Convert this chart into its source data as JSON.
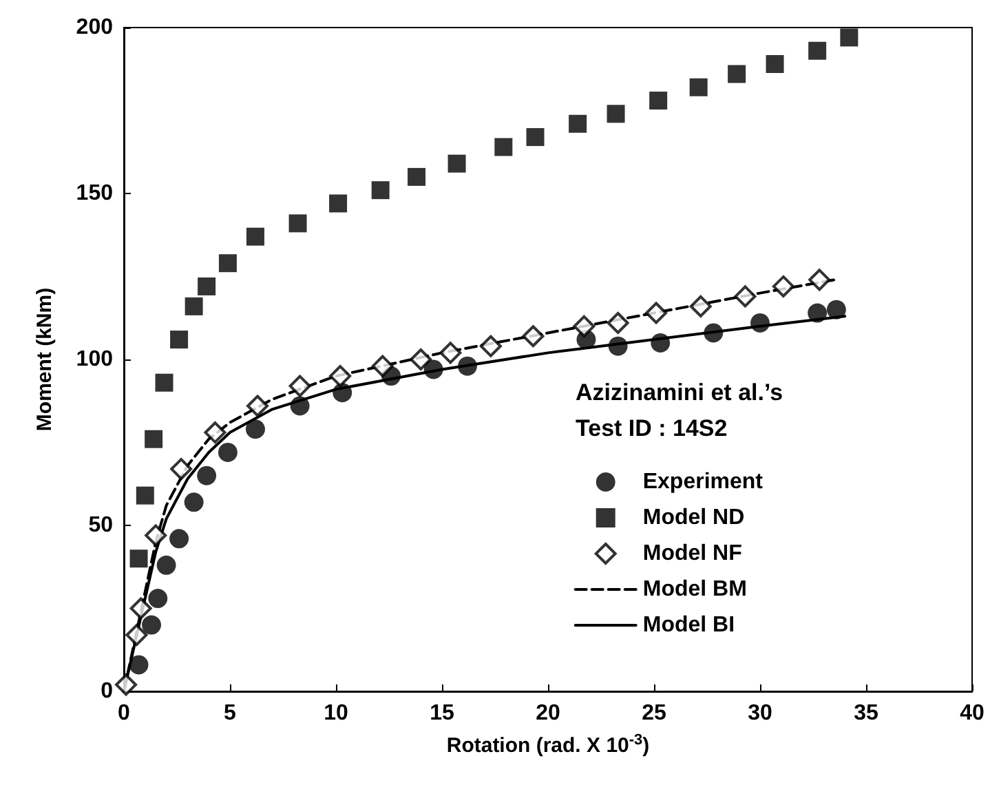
{
  "chart_data": {
    "type": "scatter",
    "xlabel": "Rotation (rad. X 10$^{-3}$)",
    "ylabel": "Moment (kNm)",
    "legend_title": "Azizinamini et al.’s\nTest ID : 14S2",
    "legend": "bottom right",
    "grid": false,
    "xlim": [
      0,
      40
    ],
    "xticks": [
      0,
      5,
      10,
      15,
      20,
      25,
      30,
      35,
      40
    ],
    "ylim": [
      0,
      200
    ],
    "yticks": [
      0,
      50,
      100,
      150,
      200
    ],
    "series": [
      {
        "name": "Experiment",
        "type": "scatter",
        "marker": "circle",
        "color": "#000000",
        "x": [
          0.7,
          1.3,
          1.6,
          2.0,
          2.6,
          3.3,
          3.9,
          4.9,
          6.2,
          8.3,
          10.3,
          12.6,
          14.6,
          16.2,
          21.8,
          23.3,
          25.3,
          27.8,
          30.0,
          32.7,
          33.6
        ],
        "values": [
          8,
          20,
          28,
          38,
          46,
          57,
          65,
          72,
          79,
          86,
          90,
          95,
          97,
          98,
          106,
          104,
          105,
          108,
          111,
          114,
          115
        ]
      },
      {
        "name": "Model ND",
        "type": "scatter",
        "marker": "square",
        "color": "#000000",
        "x": [
          0.7,
          1.0,
          1.4,
          1.9,
          2.6,
          3.3,
          3.9,
          4.9,
          6.2,
          8.2,
          10.1,
          12.1,
          13.8,
          15.7,
          17.9,
          19.4,
          21.4,
          23.2,
          25.2,
          27.1,
          28.9,
          30.7,
          32.7,
          34.2
        ],
        "values": [
          40,
          59,
          76,
          93,
          106,
          116,
          122,
          129,
          137,
          141,
          147,
          151,
          155,
          159,
          164,
          167,
          171,
          174,
          178,
          182,
          186,
          189,
          193,
          197
        ]
      },
      {
        "name": "Model NF",
        "type": "scatter",
        "marker": "diamond",
        "color": "#000000",
        "x": [
          0.1,
          0.6,
          0.8,
          1.5,
          2.7,
          4.3,
          6.3,
          8.3,
          10.2,
          12.2,
          14.0,
          15.4,
          17.3,
          19.3,
          21.7,
          23.3,
          25.1,
          27.2,
          29.3,
          31.1,
          32.8
        ],
        "values": [
          2,
          17,
          25,
          47,
          67,
          78,
          86,
          92,
          95,
          98,
          100,
          102,
          104,
          107,
          110,
          111,
          114,
          116,
          119,
          122,
          124
        ]
      },
      {
        "name": "Model BM",
        "type": "line",
        "marker": "none",
        "line_style": "dashed",
        "color": "#000000",
        "x": [
          0,
          0.5,
          1,
          1.5,
          2,
          3,
          4,
          5,
          7,
          10,
          15,
          20,
          25,
          30,
          33.5
        ],
        "values": [
          0,
          15,
          30,
          45,
          56,
          68,
          76,
          81,
          88,
          95,
          102,
          108,
          114,
          120,
          124
        ]
      },
      {
        "name": "Model BI",
        "type": "line",
        "marker": "none",
        "line_style": "solid",
        "color": "#000000",
        "x": [
          0,
          0.5,
          1,
          1.5,
          2,
          3,
          4,
          5,
          7,
          10,
          15,
          20,
          25,
          30,
          34
        ],
        "values": [
          0,
          14,
          28,
          42,
          52,
          64,
          72,
          78,
          85,
          91,
          97,
          102,
          106,
          110,
          113
        ]
      }
    ]
  }
}
